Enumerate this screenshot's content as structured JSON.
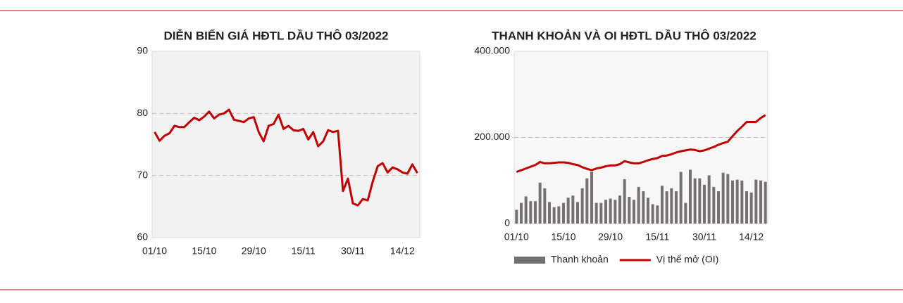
{
  "chart_data": [
    {
      "type": "line",
      "title": "DIỄN BIẾN GIÁ HĐTL DẦU THÔ 03/2022",
      "categories": [
        "01/10",
        null,
        null,
        null,
        null,
        null,
        null,
        null,
        null,
        null,
        "15/10",
        null,
        null,
        null,
        null,
        null,
        null,
        null,
        null,
        null,
        "29/10",
        null,
        null,
        null,
        null,
        null,
        null,
        null,
        null,
        null,
        "15/11",
        null,
        null,
        null,
        null,
        null,
        null,
        null,
        null,
        null,
        "30/11",
        null,
        null,
        null,
        null,
        null,
        null,
        null,
        null,
        null,
        "14/12",
        null,
        null,
        null
      ],
      "series": [
        {
          "type": "line",
          "color": "#c00000",
          "values": [
            77,
            75.6,
            76.4,
            76.8,
            78,
            77.8,
            77.8,
            78.6,
            79.3,
            78.9,
            79.5,
            80.3,
            79.2,
            79.8,
            80,
            80.6,
            79,
            78.8,
            78.6,
            79.2,
            79.4,
            77,
            75.5,
            78,
            78.3,
            79.8,
            77.5,
            78,
            77.3,
            77.2,
            77.5,
            75.8,
            77,
            74.7,
            75.5,
            77.3,
            77,
            77.2,
            67.5,
            69.5,
            65.5,
            65.2,
            66.2,
            66,
            69,
            71.5,
            72,
            70.5,
            71.3,
            71,
            70.5,
            70.3,
            71.8,
            70.4
          ]
        }
      ],
      "ylim": [
        60,
        90
      ],
      "yticks": [
        60,
        70,
        80,
        90
      ],
      "grid": true
    },
    {
      "type": "bar",
      "title": "THANH KHOẢN VÀ OI HĐTL DẦU THÔ 03/2022",
      "categories": [
        "01/10",
        null,
        null,
        null,
        null,
        null,
        null,
        null,
        null,
        null,
        "15/10",
        null,
        null,
        null,
        null,
        null,
        null,
        null,
        null,
        null,
        "29/10",
        null,
        null,
        null,
        null,
        null,
        null,
        null,
        null,
        null,
        "15/11",
        null,
        null,
        null,
        null,
        null,
        null,
        null,
        null,
        null,
        "30/11",
        null,
        null,
        null,
        null,
        null,
        null,
        null,
        null,
        null,
        "14/12",
        null,
        null,
        null
      ],
      "series": [
        {
          "name": "Thanh khoản",
          "type": "bar",
          "color": "#767171",
          "values": [
            32000,
            48000,
            63000,
            52000,
            52000,
            95000,
            82000,
            50000,
            38000,
            40000,
            48000,
            60000,
            65000,
            50000,
            82000,
            105000,
            120000,
            48000,
            48000,
            55000,
            58000,
            55000,
            65000,
            103000,
            62000,
            55000,
            85000,
            75000,
            60000,
            45000,
            42000,
            88000,
            75000,
            82000,
            75000,
            120000,
            48000,
            125000,
            105000,
            105000,
            90000,
            112000,
            85000,
            75000,
            118000,
            115000,
            100000,
            102000,
            100000,
            75000,
            72000,
            102000,
            100000,
            97000
          ]
        },
        {
          "name": "Vị thế mở (OI)",
          "type": "line",
          "color": "#c00000",
          "values": [
            120000,
            124000,
            128000,
            132000,
            136000,
            143000,
            140000,
            140000,
            141000,
            142000,
            142000,
            141000,
            138000,
            136000,
            131000,
            127000,
            124000,
            128000,
            130000,
            133000,
            135000,
            135000,
            138000,
            145000,
            142000,
            140000,
            140000,
            143000,
            147000,
            150000,
            152000,
            157000,
            158000,
            161000,
            165000,
            168000,
            170000,
            172000,
            171000,
            168000,
            170000,
            174000,
            178000,
            183000,
            187000,
            190000,
            203000,
            215000,
            225000,
            236000,
            236000,
            236000,
            245000,
            252000
          ]
        }
      ],
      "ylim": [
        0,
        400000
      ],
      "yticks": [
        0,
        {
          "value": 200000,
          "label": "200.000"
        },
        {
          "value": 400000,
          "label": "400.000"
        }
      ],
      "grid": true
    }
  ]
}
